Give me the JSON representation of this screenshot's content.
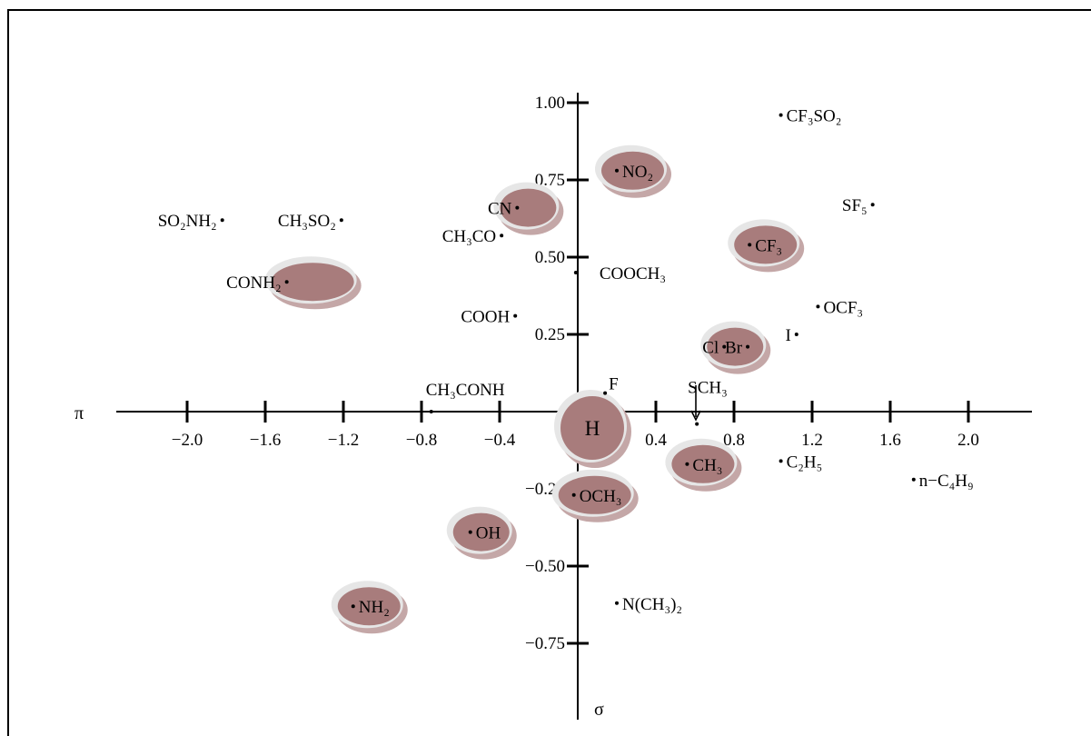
{
  "chart_data": {
    "type": "scatter",
    "title": "",
    "xlabel": "π",
    "ylabel": "σ",
    "xlim": [
      -2.5,
      2.3
    ],
    "ylim": [
      -0.97,
      1.15
    ],
    "x_ticks": [
      {
        "value": -2.0,
        "label": "−2.0"
      },
      {
        "value": -1.6,
        "label": "−1.6"
      },
      {
        "value": -1.2,
        "label": "−1.2"
      },
      {
        "value": -0.8,
        "label": "−0.8"
      },
      {
        "value": -0.4,
        "label": "−0.4"
      },
      {
        "value": 0.4,
        "label": "0.4"
      },
      {
        "value": 0.8,
        "label": "0.8"
      },
      {
        "value": 1.2,
        "label": "1.2"
      },
      {
        "value": 1.6,
        "label": "1.6"
      },
      {
        "value": 2.0,
        "label": "2.0"
      }
    ],
    "y_ticks": [
      {
        "value": 1.0,
        "label": "1.00"
      },
      {
        "value": 0.75,
        "label": "0.75"
      },
      {
        "value": 0.5,
        "label": "0.50"
      },
      {
        "value": 0.25,
        "label": "0.25"
      },
      {
        "value": -0.25,
        "label": "−0.25"
      },
      {
        "value": -0.5,
        "label": "−0.50"
      },
      {
        "value": -0.75,
        "label": "−0.75"
      }
    ],
    "grid": false,
    "highlight_color": "#a87c7c",
    "points": [
      {
        "name": "SO₂NH₂",
        "x": -1.82,
        "y": 0.62,
        "highlighted": false
      },
      {
        "name": "CH₃SO₂",
        "x": -1.21,
        "y": 0.62,
        "highlighted": false
      },
      {
        "name": "CH₃CO",
        "x": -0.39,
        "y": 0.57,
        "highlighted": false
      },
      {
        "name": "CN",
        "x": -0.31,
        "y": 0.66,
        "highlighted": true
      },
      {
        "name": "NO₂",
        "x": 0.2,
        "y": 0.78,
        "highlighted": true
      },
      {
        "name": "CONH₂",
        "x": -1.49,
        "y": 0.42,
        "highlighted": true
      },
      {
        "name": "COOCH₃",
        "x": -0.01,
        "y": 0.45,
        "highlighted": false
      },
      {
        "name": "COOH",
        "x": -0.32,
        "y": 0.31,
        "highlighted": false
      },
      {
        "name": "CF₃SO₂",
        "x": 1.04,
        "y": 0.96,
        "highlighted": false
      },
      {
        "name": "SF₅",
        "x": 1.51,
        "y": 0.67,
        "highlighted": false
      },
      {
        "name": "CF₃",
        "x": 0.88,
        "y": 0.54,
        "highlighted": true
      },
      {
        "name": "OCF₃",
        "x": 1.23,
        "y": 0.34,
        "highlighted": false
      },
      {
        "name": "I",
        "x": 1.12,
        "y": 0.25,
        "highlighted": false
      },
      {
        "name": "Cl",
        "x": 0.75,
        "y": 0.21,
        "highlighted": true
      },
      {
        "name": "Br",
        "x": 0.87,
        "y": 0.21,
        "highlighted": false
      },
      {
        "name": "SCH₃",
        "x": 0.61,
        "y": -0.04,
        "highlighted": false
      },
      {
        "name": "F",
        "x": 0.14,
        "y": 0.06,
        "highlighted": false
      },
      {
        "name": "CH₃CONH",
        "x": -0.75,
        "y": 0.0,
        "highlighted": false
      },
      {
        "name": "H",
        "x": 0.0,
        "y": 0.0,
        "highlighted": true
      },
      {
        "name": "C₂H₅",
        "x": 1.04,
        "y": -0.16,
        "highlighted": false
      },
      {
        "name": "CH₃",
        "x": 0.56,
        "y": -0.17,
        "highlighted": true
      },
      {
        "name": "n−C₄H₉",
        "x": 1.72,
        "y": -0.22,
        "highlighted": false
      },
      {
        "name": "OCH₃",
        "x": -0.02,
        "y": -0.27,
        "highlighted": true
      },
      {
        "name": "OH",
        "x": -0.55,
        "y": -0.39,
        "highlighted": true
      },
      {
        "name": "N(CH₃)₂",
        "x": 0.2,
        "y": -0.62,
        "highlighted": false
      },
      {
        "name": "NH₂",
        "x": -1.15,
        "y": -0.63,
        "highlighted": true
      }
    ]
  }
}
